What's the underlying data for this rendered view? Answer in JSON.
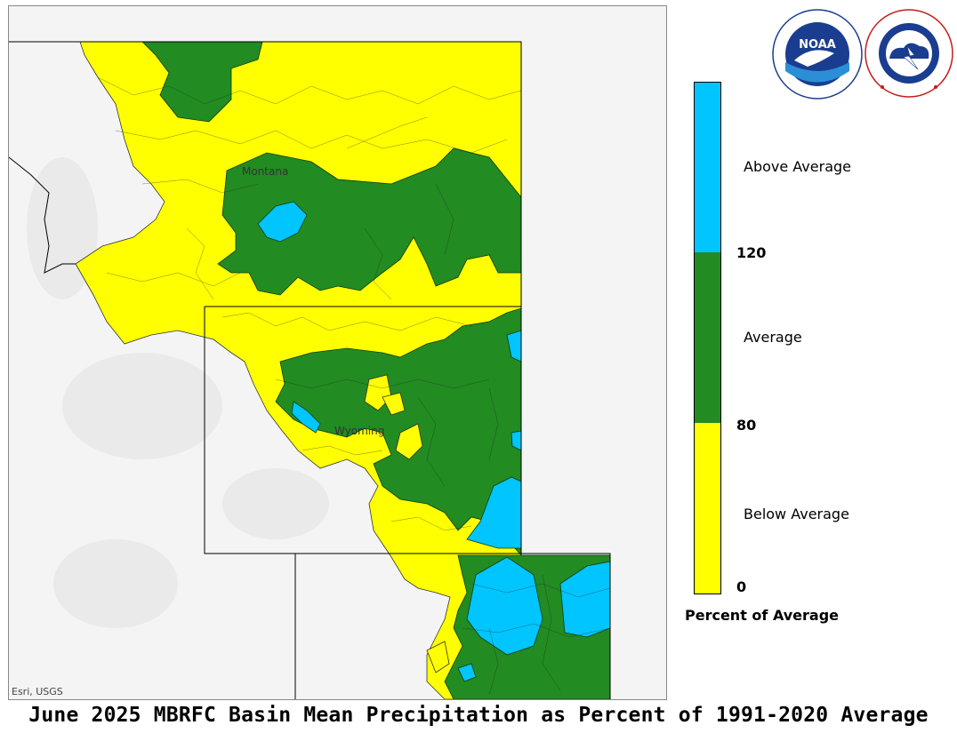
{
  "map": {
    "attribution": "Esri, USGS",
    "state_labels": {
      "montana": "Montana",
      "wyoming": "Wyoming"
    }
  },
  "legend": {
    "categories": [
      {
        "label": "Above Average",
        "color": "#00c5ff"
      },
      {
        "label": "Average",
        "color": "#228b22"
      },
      {
        "label": "Below Average",
        "color": "#ffff00"
      }
    ],
    "breaks": [
      "120",
      "80",
      "0"
    ],
    "title": "Percent of Average"
  },
  "logos": [
    {
      "name": "noaa-logo",
      "text": "NOAA",
      "ring_text": "NATIONAL OCEANIC AND ATMOSPHERIC ADMINISTRATION · U.S. DEPARTMENT OF COMMERCE"
    },
    {
      "name": "nws-logo",
      "ring_text": "NATIONAL WEATHER SERVICE"
    }
  ],
  "title": "June 2025 MBRFC Basin Mean Precipitation as Percent of 1991-2020 Average"
}
